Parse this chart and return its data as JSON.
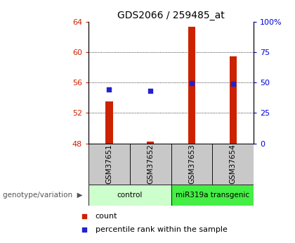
{
  "title": "GDS2066 / 259485_at",
  "samples": [
    "GSM37651",
    "GSM37652",
    "GSM37653",
    "GSM37654"
  ],
  "count_values": [
    53.5,
    48.25,
    63.4,
    59.5
  ],
  "percentile_values": [
    44.5,
    43.0,
    49.5,
    49.0
  ],
  "ylim_left": [
    48,
    64
  ],
  "ylim_right": [
    0,
    100
  ],
  "yticks_left": [
    48,
    52,
    56,
    60,
    64
  ],
  "yticks_right": [
    0,
    25,
    50,
    75,
    100
  ],
  "ytick_labels_right": [
    "0",
    "25",
    "50",
    "75",
    "100%"
  ],
  "bar_color": "#cc2200",
  "dot_color": "#2222cc",
  "bar_width": 0.18,
  "groups": [
    {
      "label": "control",
      "samples": [
        0,
        1
      ],
      "color": "#ccffcc"
    },
    {
      "label": "miR319a transgenic",
      "samples": [
        2,
        3
      ],
      "color": "#44ee44"
    }
  ],
  "group_label_prefix": "genotype/variation",
  "legend_count_label": "count",
  "legend_percentile_label": "percentile rank within the sample",
  "plot_bg": "#ffffff",
  "sample_label_area_color": "#c8c8c8",
  "title_fontsize": 10,
  "tick_fontsize": 8,
  "label_fontsize": 7.5
}
